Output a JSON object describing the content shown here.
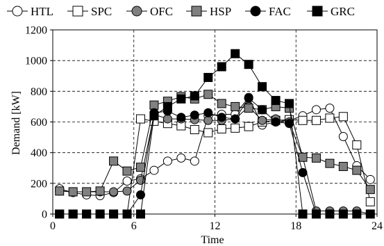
{
  "chart_data": {
    "type": "line",
    "xlabel": "Time",
    "ylabel": "Demand [kW]",
    "xlim": [
      0,
      24
    ],
    "ylim": [
      0,
      1200
    ],
    "xticks": [
      0,
      6,
      12,
      18,
      24
    ],
    "yticks": [
      0,
      200,
      400,
      600,
      800,
      1000,
      1200
    ],
    "grid": "horizontal dashed",
    "legend": "top",
    "x": [
      0.5,
      1.5,
      2.5,
      3.5,
      4.5,
      5.5,
      6.5,
      7.5,
      8.5,
      9.5,
      10.5,
      11.5,
      12.5,
      13.5,
      14.5,
      15.5,
      16.5,
      17.5,
      18.5,
      19.5,
      20.5,
      21.5,
      22.5,
      23.5
    ],
    "series": [
      {
        "name": "HTL",
        "marker": "circle",
        "fill": "#ffffff",
        "values": [
          165,
          140,
          125,
          120,
          140,
          215,
          230,
          285,
          345,
          365,
          345,
          640,
          650,
          650,
          760,
          580,
          600,
          610,
          640,
          680,
          690,
          505,
          315,
          225
        ]
      },
      {
        "name": "SPC",
        "marker": "square",
        "fill": "#ffffff",
        "values": [
          0,
          0,
          0,
          0,
          0,
          0,
          620,
          605,
          590,
          575,
          550,
          530,
          555,
          560,
          570,
          600,
          610,
          615,
          610,
          610,
          625,
          635,
          450,
          80
        ]
      },
      {
        "name": "OFC",
        "marker": "circle",
        "fill": "#808080",
        "values": [
          150,
          145,
          145,
          145,
          145,
          150,
          220,
          650,
          620,
          620,
          615,
          610,
          610,
          620,
          700,
          610,
          620,
          600,
          370,
          20,
          20,
          20,
          20,
          0
        ]
      },
      {
        "name": "HSP",
        "marker": "square",
        "fill": "#808080",
        "values": [
          150,
          145,
          145,
          150,
          345,
          280,
          305,
          710,
          735,
          765,
          750,
          780,
          720,
          700,
          690,
          680,
          700,
          690,
          370,
          365,
          330,
          310,
          285,
          160
        ]
      },
      {
        "name": "FAC",
        "marker": "circle",
        "fill": "#000000",
        "values": [
          0,
          0,
          0,
          0,
          0,
          0,
          125,
          660,
          670,
          630,
          645,
          660,
          630,
          620,
          755,
          680,
          600,
          590,
          270,
          0,
          0,
          0,
          0,
          0
        ]
      },
      {
        "name": "GRC",
        "marker": "square",
        "fill": "#000000",
        "values": [
          0,
          0,
          0,
          0,
          0,
          0,
          0,
          640,
          700,
          750,
          770,
          890,
          960,
          1045,
          975,
          830,
          740,
          720,
          0,
          0,
          0,
          0,
          0,
          0
        ]
      }
    ]
  }
}
